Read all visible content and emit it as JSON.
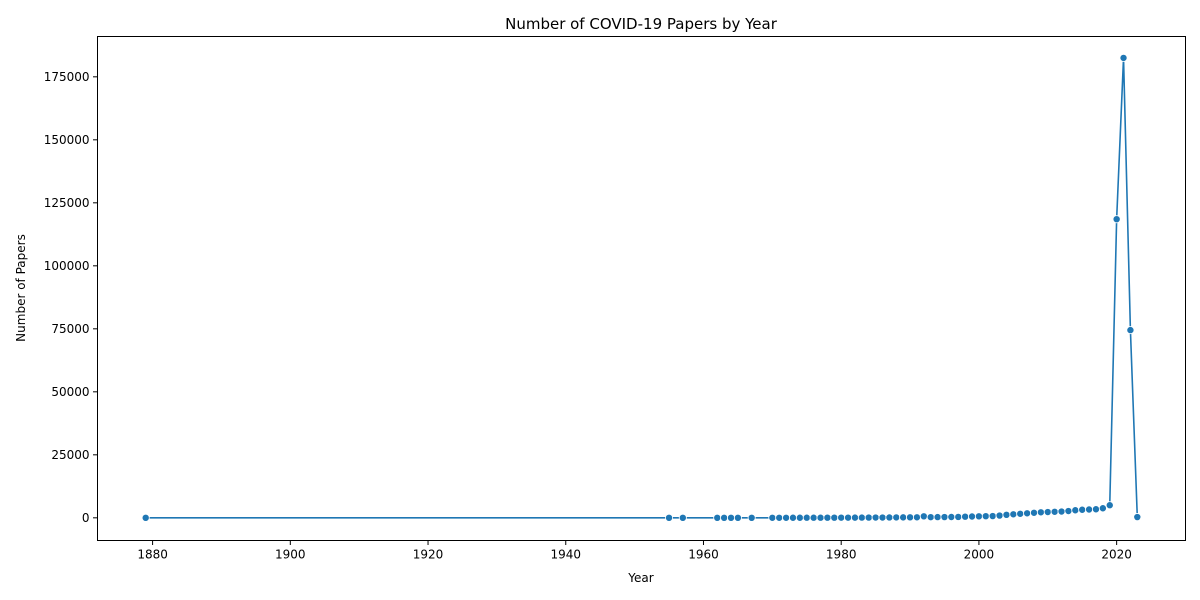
{
  "chart_data": {
    "type": "line",
    "title": "Number of COVID-19 Papers by Year",
    "xlabel": "Year",
    "ylabel": "Number of Papers",
    "xlim": [
      1872,
      2030
    ],
    "ylim": [
      -9000,
      191000
    ],
    "xticks": [
      1880,
      1900,
      1920,
      1940,
      1960,
      1980,
      2000,
      2020
    ],
    "yticks": [
      0,
      25000,
      50000,
      75000,
      100000,
      125000,
      150000,
      175000
    ],
    "grid": false,
    "legend": "none",
    "series_color": "#1f77b4",
    "marker": "circle",
    "x": [
      1879,
      1955,
      1957,
      1962,
      1963,
      1964,
      1965,
      1967,
      1970,
      1971,
      1972,
      1973,
      1974,
      1975,
      1976,
      1977,
      1978,
      1979,
      1980,
      1981,
      1982,
      1983,
      1984,
      1985,
      1986,
      1987,
      1988,
      1989,
      1990,
      1991,
      1992,
      1993,
      1994,
      1995,
      1996,
      1997,
      1998,
      1999,
      2000,
      2001,
      2002,
      2003,
      2004,
      2005,
      2006,
      2007,
      2008,
      2009,
      2010,
      2011,
      2012,
      2013,
      2014,
      2015,
      2016,
      2017,
      2018,
      2019,
      2020,
      2021,
      2022,
      2023
    ],
    "y": [
      1,
      2,
      1,
      3,
      5,
      6,
      4,
      8,
      15,
      18,
      20,
      25,
      30,
      35,
      40,
      45,
      50,
      55,
      60,
      70,
      80,
      90,
      100,
      110,
      120,
      140,
      160,
      180,
      200,
      220,
      600,
      260,
      280,
      300,
      320,
      350,
      450,
      520,
      600,
      650,
      700,
      900,
      1200,
      1400,
      1600,
      1800,
      2000,
      2200,
      2300,
      2400,
      2500,
      2700,
      3000,
      3200,
      3300,
      3400,
      3800,
      5000,
      118500,
      182500,
      74500,
      300
    ]
  }
}
